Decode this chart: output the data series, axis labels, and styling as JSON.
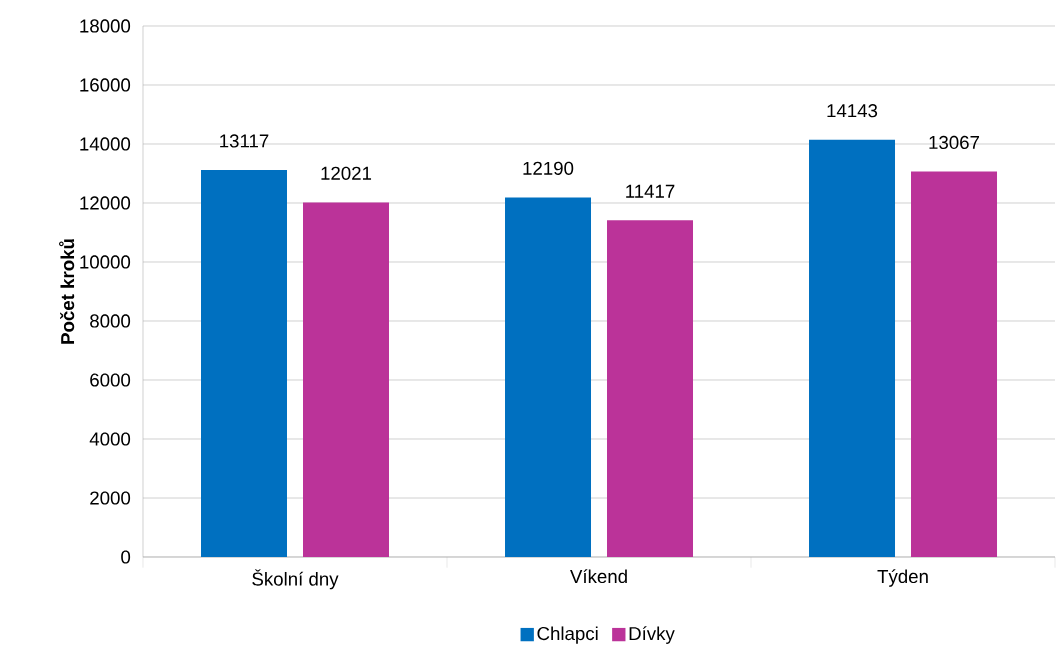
{
  "chart_data": {
    "type": "bar",
    "ylabel": "Počet kroků",
    "categories": [
      "Školní dny",
      "Víkend",
      "Týden"
    ],
    "series": [
      {
        "name": "Chlapci",
        "color": "#0070c0",
        "values": [
          13117,
          12190,
          14143
        ]
      },
      {
        "name": "Dívky",
        "color": "#bb3399",
        "values": [
          12021,
          11417,
          13067
        ]
      }
    ],
    "ylim": [
      0,
      18000
    ],
    "yticks": [
      0,
      2000,
      4000,
      6000,
      8000,
      10000,
      12000,
      14000,
      16000,
      18000
    ],
    "grid": "y",
    "legend": "bottom",
    "data_labels": true
  }
}
